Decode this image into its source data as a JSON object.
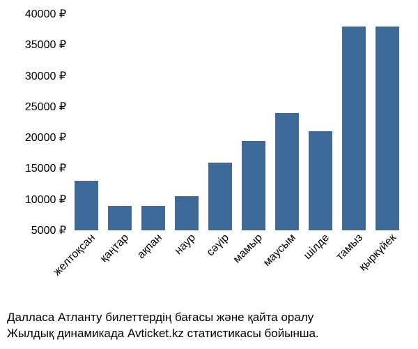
{
  "chart": {
    "type": "bar",
    "categories": [
      "желтоқсан",
      "қаңтар",
      "ақпан",
      "наур",
      "сәүір",
      "мамыр",
      "маусым",
      "шілде",
      "тамыз",
      "қыркүйек"
    ],
    "values": [
      13000,
      9000,
      9000,
      10500,
      16000,
      19500,
      24000,
      21000,
      38000,
      38000
    ],
    "bar_color": "#3d6a98",
    "ylim": [
      5000,
      40000
    ],
    "ytick_step": 5000,
    "y_tick_labels": [
      "5000 ₽",
      "10000 ₽",
      "15000 ₽",
      "20000 ₽",
      "25000 ₽",
      "30000 ₽",
      "35000 ₽",
      "40000 ₽"
    ],
    "y_tick_values": [
      5000,
      10000,
      15000,
      20000,
      25000,
      30000,
      35000,
      40000
    ],
    "background_color": "#ffffff",
    "text_color": "#000000",
    "axis_fontsize": 16,
    "bar_width": 0.7
  },
  "caption": {
    "line1": "Далласа Атланту билеттердің бағасы және қайта оралу",
    "line2": "Жылдық динамикада Avticket.kz статистикасы бойынша."
  }
}
